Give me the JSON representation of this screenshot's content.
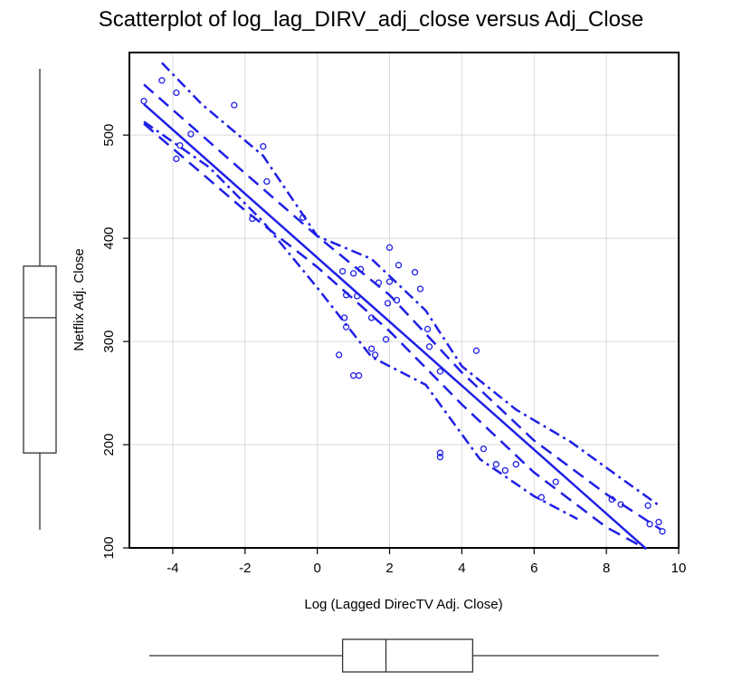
{
  "chart_data": {
    "type": "scatter",
    "title": "Scatterplot of log_lag_DIRV_adj_close versus Adj_Close",
    "xlabel": "Log (Lagged DirecTV Adj. Close)",
    "ylabel": "Netflix Adj. Close",
    "xlim": [
      -5.2,
      10
    ],
    "ylim": [
      100,
      580
    ],
    "xticks": [
      "-4",
      "-2",
      "0",
      "2",
      "4",
      "6",
      "8",
      "10"
    ],
    "yticks": [
      "100",
      "200",
      "300",
      "400",
      "500"
    ],
    "grid": true,
    "color": "#1f1fe6",
    "points": [
      {
        "x": -4.8,
        "y": 533
      },
      {
        "x": -4.3,
        "y": 553
      },
      {
        "x": -3.9,
        "y": 541
      },
      {
        "x": -3.9,
        "y": 477
      },
      {
        "x": -3.8,
        "y": 490
      },
      {
        "x": -3.5,
        "y": 501
      },
      {
        "x": -2.3,
        "y": 529
      },
      {
        "x": -1.8,
        "y": 419
      },
      {
        "x": -1.5,
        "y": 489
      },
      {
        "x": -1.4,
        "y": 455
      },
      {
        "x": -0.4,
        "y": 420
      },
      {
        "x": 0.6,
        "y": 287
      },
      {
        "x": 0.7,
        "y": 368
      },
      {
        "x": 0.75,
        "y": 323
      },
      {
        "x": 0.8,
        "y": 314
      },
      {
        "x": 0.8,
        "y": 345
      },
      {
        "x": 1.0,
        "y": 366
      },
      {
        "x": 1.0,
        "y": 267
      },
      {
        "x": 1.1,
        "y": 344
      },
      {
        "x": 1.15,
        "y": 267
      },
      {
        "x": 1.2,
        "y": 370
      },
      {
        "x": 1.5,
        "y": 323
      },
      {
        "x": 1.5,
        "y": 293
      },
      {
        "x": 1.6,
        "y": 287
      },
      {
        "x": 1.7,
        "y": 357
      },
      {
        "x": 1.9,
        "y": 302
      },
      {
        "x": 1.95,
        "y": 337
      },
      {
        "x": 2.0,
        "y": 358
      },
      {
        "x": 2.0,
        "y": 391
      },
      {
        "x": 2.2,
        "y": 340
      },
      {
        "x": 2.25,
        "y": 374
      },
      {
        "x": 2.7,
        "y": 367
      },
      {
        "x": 2.85,
        "y": 351
      },
      {
        "x": 3.05,
        "y": 312
      },
      {
        "x": 3.1,
        "y": 295
      },
      {
        "x": 3.4,
        "y": 192
      },
      {
        "x": 3.4,
        "y": 188
      },
      {
        "x": 3.4,
        "y": 271
      },
      {
        "x": 4.4,
        "y": 291
      },
      {
        "x": 4.6,
        "y": 196
      },
      {
        "x": 4.95,
        "y": 181
      },
      {
        "x": 5.2,
        "y": 175
      },
      {
        "x": 5.5,
        "y": 181
      },
      {
        "x": 6.2,
        "y": 149
      },
      {
        "x": 6.6,
        "y": 164
      },
      {
        "x": 8.15,
        "y": 147
      },
      {
        "x": 8.4,
        "y": 142
      },
      {
        "x": 9.15,
        "y": 141
      },
      {
        "x": 9.2,
        "y": 123
      },
      {
        "x": 9.45,
        "y": 125
      },
      {
        "x": 9.55,
        "y": 116
      }
    ],
    "fit_line": [
      {
        "x": -4.8,
        "y": 530
      },
      {
        "x": 9.1,
        "y": 99
      }
    ],
    "ci_upper": [
      {
        "x": -4.8,
        "y": 549
      },
      {
        "x": -2,
        "y": 463
      },
      {
        "x": 0,
        "y": 402
      },
      {
        "x": 2,
        "y": 345
      },
      {
        "x": 4,
        "y": 270
      },
      {
        "x": 6,
        "y": 204
      },
      {
        "x": 8,
        "y": 152
      },
      {
        "x": 9.5,
        "y": 118
      }
    ],
    "ci_lower": [
      {
        "x": -4.8,
        "y": 511
      },
      {
        "x": -2,
        "y": 427
      },
      {
        "x": 0,
        "y": 372
      },
      {
        "x": 2,
        "y": 310
      },
      {
        "x": 4,
        "y": 239
      },
      {
        "x": 6,
        "y": 173
      },
      {
        "x": 8,
        "y": 120
      },
      {
        "x": 9.1,
        "y": 99
      }
    ],
    "pi_upper": [
      {
        "x": -4.3,
        "y": 570
      },
      {
        "x": -3.2,
        "y": 530
      },
      {
        "x": -1.5,
        "y": 480
      },
      {
        "x": 0,
        "y": 402
      },
      {
        "x": 1.5,
        "y": 380
      },
      {
        "x": 3,
        "y": 330
      },
      {
        "x": 4,
        "y": 276
      },
      {
        "x": 5.5,
        "y": 234
      },
      {
        "x": 7,
        "y": 203
      },
      {
        "x": 8.5,
        "y": 165
      },
      {
        "x": 9.5,
        "y": 140
      }
    ],
    "pi_lower": [
      {
        "x": -4.8,
        "y": 513
      },
      {
        "x": -3,
        "y": 469
      },
      {
        "x": -1.5,
        "y": 416
      },
      {
        "x": 0,
        "y": 352
      },
      {
        "x": 1.5,
        "y": 285
      },
      {
        "x": 3,
        "y": 258
      },
      {
        "x": 4.5,
        "y": 186
      },
      {
        "x": 6,
        "y": 150
      },
      {
        "x": 7.2,
        "y": 128
      }
    ],
    "x_boxplot": {
      "min": -4.8,
      "q1": 0.7,
      "median": 1.9,
      "q3": 4.3,
      "max": 9.55
    },
    "y_boxplot": {
      "min": 116,
      "q1": 192,
      "median": 323,
      "q3": 373,
      "max": 553
    }
  }
}
